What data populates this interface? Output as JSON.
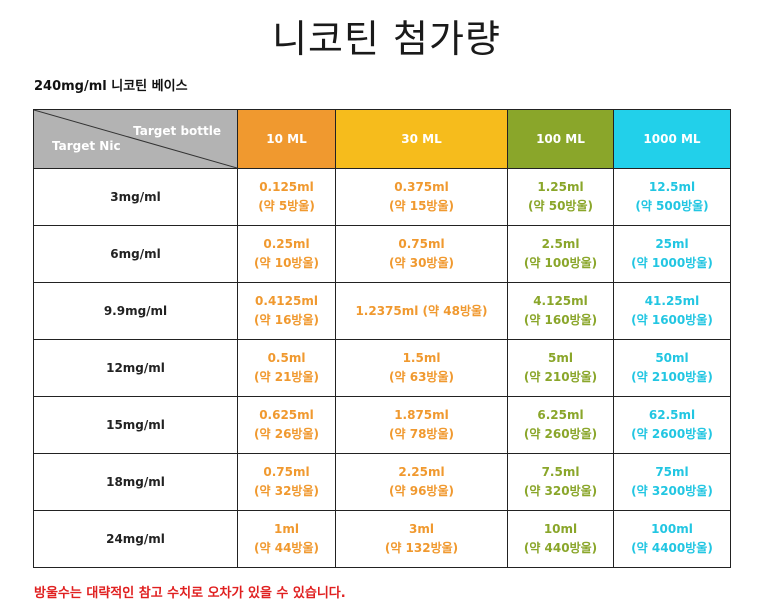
{
  "title": "니코틴 첨가량",
  "subtitle": "240mg/ml 니코틴 베이스",
  "table": {
    "corner_top": "Target bottle",
    "corner_bottom": "Target Nic",
    "columns": [
      {
        "label": "10 ML",
        "bg": "#f0992f",
        "text_color": "#f0992f"
      },
      {
        "label": "30 ML",
        "bg": "#f6bc1c",
        "text_color": "#f0992f"
      },
      {
        "label": "100 ML",
        "bg": "#8aa62a",
        "text_color": "#8aa62a"
      },
      {
        "label": "1000 ML",
        "bg": "#22d0ea",
        "text_color": "#22c6e2"
      }
    ],
    "rows": [
      {
        "nic": "3mg/ml",
        "cells": [
          {
            "line1": "0.125ml",
            "line2": "(약 5방울)"
          },
          {
            "line1": "0.375ml",
            "line2": "(약 15방울)"
          },
          {
            "line1": "1.25ml",
            "line2": "(약 50방울)"
          },
          {
            "line1": "12.5ml",
            "line2": "(약 500방울)"
          }
        ]
      },
      {
        "nic": "6mg/ml",
        "cells": [
          {
            "line1": "0.25ml",
            "line2": "(약 10방울)"
          },
          {
            "line1": "0.75ml",
            "line2": "(약 30방울)"
          },
          {
            "line1": "2.5ml",
            "line2": "(약 100방울)"
          },
          {
            "line1": "25ml",
            "line2": "(약 1000방울)"
          }
        ]
      },
      {
        "nic": "9.9mg/ml",
        "cells": [
          {
            "line1": "0.4125ml",
            "line2": "(약 16방울)"
          },
          {
            "line1": "1.2375ml (약 48방울)",
            "line2": ""
          },
          {
            "line1": "4.125ml",
            "line2": "(약 160방울)"
          },
          {
            "line1": "41.25ml",
            "line2": "(약 1600방울)"
          }
        ]
      },
      {
        "nic": "12mg/ml",
        "cells": [
          {
            "line1": "0.5ml",
            "line2": "(약 21방울)"
          },
          {
            "line1": "1.5ml",
            "line2": "(약 63방울)"
          },
          {
            "line1": "5ml",
            "line2": "(약 210방울)"
          },
          {
            "line1": "50ml",
            "line2": "(약 2100방울)"
          }
        ]
      },
      {
        "nic": "15mg/ml",
        "cells": [
          {
            "line1": "0.625ml",
            "line2": "(약 26방울)"
          },
          {
            "line1": "1.875ml",
            "line2": "(약 78방울)"
          },
          {
            "line1": "6.25ml",
            "line2": "(약 260방울)"
          },
          {
            "line1": "62.5ml",
            "line2": "(약 2600방울)"
          }
        ]
      },
      {
        "nic": "18mg/ml",
        "cells": [
          {
            "line1": "0.75ml",
            "line2": "(약 32방울)"
          },
          {
            "line1": "2.25ml",
            "line2": "(약 96방울)"
          },
          {
            "line1": "7.5ml",
            "line2": "(약 320방울)"
          },
          {
            "line1": "75ml",
            "line2": "(약 3200방울)"
          }
        ]
      },
      {
        "nic": "24mg/ml",
        "cells": [
          {
            "line1": "1ml",
            "line2": "(약 44방울)"
          },
          {
            "line1": "3ml",
            "line2": "(약 132방울)"
          },
          {
            "line1": "10ml",
            "line2": "(약 440방울)"
          },
          {
            "line1": "100ml",
            "line2": "(약 4400방울)"
          }
        ]
      }
    ]
  },
  "note": "방울수는 대략적인 참고 수치로 오차가 있을 수 있습니다."
}
